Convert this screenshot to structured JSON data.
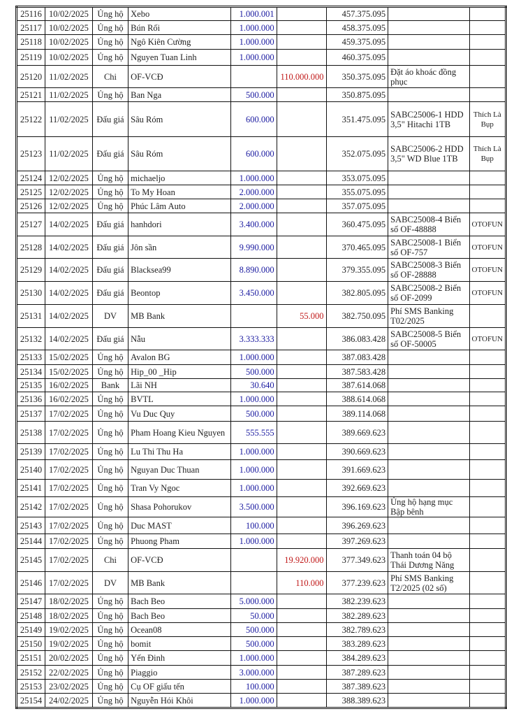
{
  "rows": [
    {
      "id": "25116",
      "date": "10/02/2025",
      "type": "Ủng hộ",
      "name": "Xebo",
      "in": "1.000.001",
      "out": "",
      "balance": "457.375.095",
      "note": "",
      "tag": ""
    },
    {
      "id": "25117",
      "date": "10/02/2025",
      "type": "Ủng hộ",
      "name": "Bún Rối",
      "in": "1.000.000",
      "out": "",
      "balance": "458.375.095",
      "note": "",
      "tag": ""
    },
    {
      "id": "25118",
      "date": "10/02/2025",
      "type": "Ủng hộ",
      "name": "Ngô Kiên Cường",
      "in": "1.000.000",
      "out": "",
      "balance": "459.375.095",
      "note": "",
      "tag": ""
    },
    {
      "id": "25119",
      "date": "10/02/2025",
      "type": "Ủng hộ",
      "name": "Nguyen Tuan Linh",
      "in": "1.000.000",
      "out": "",
      "balance": "460.375.095",
      "note": "",
      "tag": ""
    },
    {
      "id": "25120",
      "date": "11/02/2025",
      "type": "Chi",
      "name": "OF-VCĐ",
      "in": "",
      "out": "110.000.000",
      "balance": "350.375.095",
      "note": "Đặt áo khoác đồng phục",
      "tag": ""
    },
    {
      "id": "25121",
      "date": "11/02/2025",
      "type": "Ủng hộ",
      "name": "Ban Nga",
      "in": "500.000",
      "out": "",
      "balance": "350.875.095",
      "note": "",
      "tag": ""
    },
    {
      "id": "25122",
      "date": "11/02/2025",
      "type": "Đấu giá",
      "name": "Sâu Róm",
      "in": "600.000",
      "out": "",
      "balance": "351.475.095",
      "note": "SABC25006-1 HDD 3,5\" Hitachi 1TB",
      "tag": "Thích Là Bụp"
    },
    {
      "id": "25123",
      "date": "11/02/2025",
      "type": "Đấu giá",
      "name": "Sâu Róm",
      "in": "600.000",
      "out": "",
      "balance": "352.075.095",
      "note": "SABC25006-2 HDD 3,5\" WD Blue 1TB",
      "tag": "Thích Là Bụp"
    },
    {
      "id": "25124",
      "date": "12/02/2025",
      "type": "Ủng hộ",
      "name": "michaeljo",
      "in": "1.000.000",
      "out": "",
      "balance": "353.075.095",
      "note": "",
      "tag": ""
    },
    {
      "id": "25125",
      "date": "12/02/2025",
      "type": "Ủng hộ",
      "name": "To My Hoan",
      "in": "2.000.000",
      "out": "",
      "balance": "355.075.095",
      "note": "",
      "tag": ""
    },
    {
      "id": "25126",
      "date": "12/02/2025",
      "type": "Ủng hộ",
      "name": "Phúc Lâm Auto",
      "in": "2.000.000",
      "out": "",
      "balance": "357.075.095",
      "note": "",
      "tag": ""
    },
    {
      "id": "25127",
      "date": "14/02/2025",
      "type": "Đấu giá",
      "name": "hanhdori",
      "in": "3.400.000",
      "out": "",
      "balance": "360.475.095",
      "note": "SABC25008-4 Biển số OF-48888",
      "tag": "OTOFUN"
    },
    {
      "id": "25128",
      "date": "14/02/2025",
      "type": "Đấu giá",
      "name": "Jôn sần",
      "in": "9.990.000",
      "out": "",
      "balance": "370.465.095",
      "note": "SABC25008-1 Biển số OF-757",
      "tag": "OTOFUN"
    },
    {
      "id": "25129",
      "date": "14/02/2025",
      "type": "Đấu giá",
      "name": "Blacksea99",
      "in": "8.890.000",
      "out": "",
      "balance": "379.355.095",
      "note": "SABC25008-3 Biển số OF-28888",
      "tag": "OTOFUN"
    },
    {
      "id": "25130",
      "date": "14/02/2025",
      "type": "Đấu giá",
      "name": "Beontop",
      "in": "3.450.000",
      "out": "",
      "balance": "382.805.095",
      "note": "SABC25008-2 Biển số OF-2099",
      "tag": "OTOFUN"
    },
    {
      "id": "25131",
      "date": "14/02/2025",
      "type": "DV",
      "name": "MB Bank",
      "in": "",
      "out": "55.000",
      "balance": "382.750.095",
      "note": "Phí SMS Banking T02/2025",
      "tag": ""
    },
    {
      "id": "25132",
      "date": "14/02/2025",
      "type": "Đấu giá",
      "name": "Nẫu",
      "in": "3.333.333",
      "out": "",
      "balance": "386.083.428",
      "note": "SABC25008-5 Biển số OF-50005",
      "tag": "OTOFUN"
    },
    {
      "id": "25133",
      "date": "15/02/2025",
      "type": "Ủng hộ",
      "name": "Avalon BG",
      "in": "1.000.000",
      "out": "",
      "balance": "387.083.428",
      "note": "",
      "tag": ""
    },
    {
      "id": "25134",
      "date": "15/02/2025",
      "type": "Ủng hộ",
      "name": "Hip_00 _Hip",
      "in": "500.000",
      "out": "",
      "balance": "387.583.428",
      "note": "",
      "tag": ""
    },
    {
      "id": "25135",
      "date": "16/02/2025",
      "type": "Bank",
      "name": "Lãi NH",
      "in": "30.640",
      "out": "",
      "balance": "387.614.068",
      "note": "",
      "tag": ""
    },
    {
      "id": "25136",
      "date": "16/02/2025",
      "type": "Ủng hộ",
      "name": "BVTL",
      "in": "1.000.000",
      "out": "",
      "balance": "388.614.068",
      "note": "",
      "tag": ""
    },
    {
      "id": "25137",
      "date": "17/02/2025",
      "type": "Ủng hộ",
      "name": "Vu Duc Quy",
      "in": "500.000",
      "out": "",
      "balance": "389.114.068",
      "note": "",
      "tag": ""
    },
    {
      "id": "25138",
      "date": "17/02/2025",
      "type": "Ủng hộ",
      "name": "Pham Hoang Kieu Nguyen",
      "in": "555.555",
      "out": "",
      "balance": "389.669.623",
      "note": "",
      "tag": ""
    },
    {
      "id": "25139",
      "date": "17/02/2025",
      "type": "Ủng hộ",
      "name": "Lu Thi Thu Ha",
      "in": "1.000.000",
      "out": "",
      "balance": "390.669.623",
      "note": "",
      "tag": ""
    },
    {
      "id": "25140",
      "date": "17/02/2025",
      "type": "Ủng hộ",
      "name": "Nguyan Duc Thuan",
      "in": "1.000.000",
      "out": "",
      "balance": "391.669.623",
      "note": "",
      "tag": ""
    },
    {
      "id": "25141",
      "date": "17/02/2025",
      "type": "Ủng hộ",
      "name": "Tran Vy Ngoc",
      "in": "1.000.000",
      "out": "",
      "balance": "392.669.623",
      "note": "",
      "tag": ""
    },
    {
      "id": "25142",
      "date": "17/02/2025",
      "type": "Ủng hộ",
      "name": "Shasa Pohorukov",
      "in": "3.500.000",
      "out": "",
      "balance": "396.169.623",
      "note": "Ủng hộ hạng mục Bập bênh",
      "tag": ""
    },
    {
      "id": "25143",
      "date": "17/02/2025",
      "type": "Ủng hộ",
      "name": "Duc MAST",
      "in": "100.000",
      "out": "",
      "balance": "396.269.623",
      "note": "",
      "tag": ""
    },
    {
      "id": "25144",
      "date": "17/02/2025",
      "type": "Ủng hộ",
      "name": "Phuong Pham",
      "in": "1.000.000",
      "out": "",
      "balance": "397.269.623",
      "note": "",
      "tag": ""
    },
    {
      "id": "25145",
      "date": "17/02/2025",
      "type": "Chi",
      "name": "OF-VCĐ",
      "in": "",
      "out": "19.920.000",
      "balance": "377.349.623",
      "note": "Thanh toán 04 bộ Thái Dương Năng",
      "tag": ""
    },
    {
      "id": "25146",
      "date": "17/02/2025",
      "type": "DV",
      "name": "MB Bank",
      "in": "",
      "out": "110.000",
      "balance": "377.239.623",
      "note": "Phí SMS Banking T2/2025 (02 số)",
      "tag": ""
    },
    {
      "id": "25147",
      "date": "18/02/2025",
      "type": "Ủng hộ",
      "name": "Bach Beo",
      "in": "5.000.000",
      "out": "",
      "balance": "382.239.623",
      "note": "",
      "tag": ""
    },
    {
      "id": "25148",
      "date": "18/02/2025",
      "type": "Ủng hộ",
      "name": "Bach Beo",
      "in": "50.000",
      "out": "",
      "balance": "382.289.623",
      "note": "",
      "tag": ""
    },
    {
      "id": "25149",
      "date": "19/02/2025",
      "type": "Ủng hộ",
      "name": "Ocean08",
      "in": "500.000",
      "out": "",
      "balance": "382.789.623",
      "note": "",
      "tag": ""
    },
    {
      "id": "25150",
      "date": "19/02/2025",
      "type": "Ủng hộ",
      "name": "bomit",
      "in": "500.000",
      "out": "",
      "balance": "383.289.623",
      "note": "",
      "tag": ""
    },
    {
      "id": "25151",
      "date": "20/02/2025",
      "type": "Ủng hộ",
      "name": "Yến Đinh",
      "in": "1.000.000",
      "out": "",
      "balance": "384.289.623",
      "note": "",
      "tag": ""
    },
    {
      "id": "25152",
      "date": "22/02/2025",
      "type": "Ủng hộ",
      "name": "Piaggio",
      "in": "3.000.000",
      "out": "",
      "balance": "387.289.623",
      "note": "",
      "tag": ""
    },
    {
      "id": "25153",
      "date": "23/02/2025",
      "type": "Ủng hộ",
      "name": "Cụ OF giấu tến",
      "in": "100.000",
      "out": "",
      "balance": "387.389.623",
      "note": "",
      "tag": ""
    },
    {
      "id": "25154",
      "date": "24/02/2025",
      "type": "Ủng hộ",
      "name": "Nguyễn Hói Khôi",
      "in": "1.000.000",
      "out": "",
      "balance": "388.389.623",
      "note": "",
      "tag": ""
    }
  ],
  "colors": {
    "income": "#1a1aa0",
    "expense": "#c01818"
  }
}
